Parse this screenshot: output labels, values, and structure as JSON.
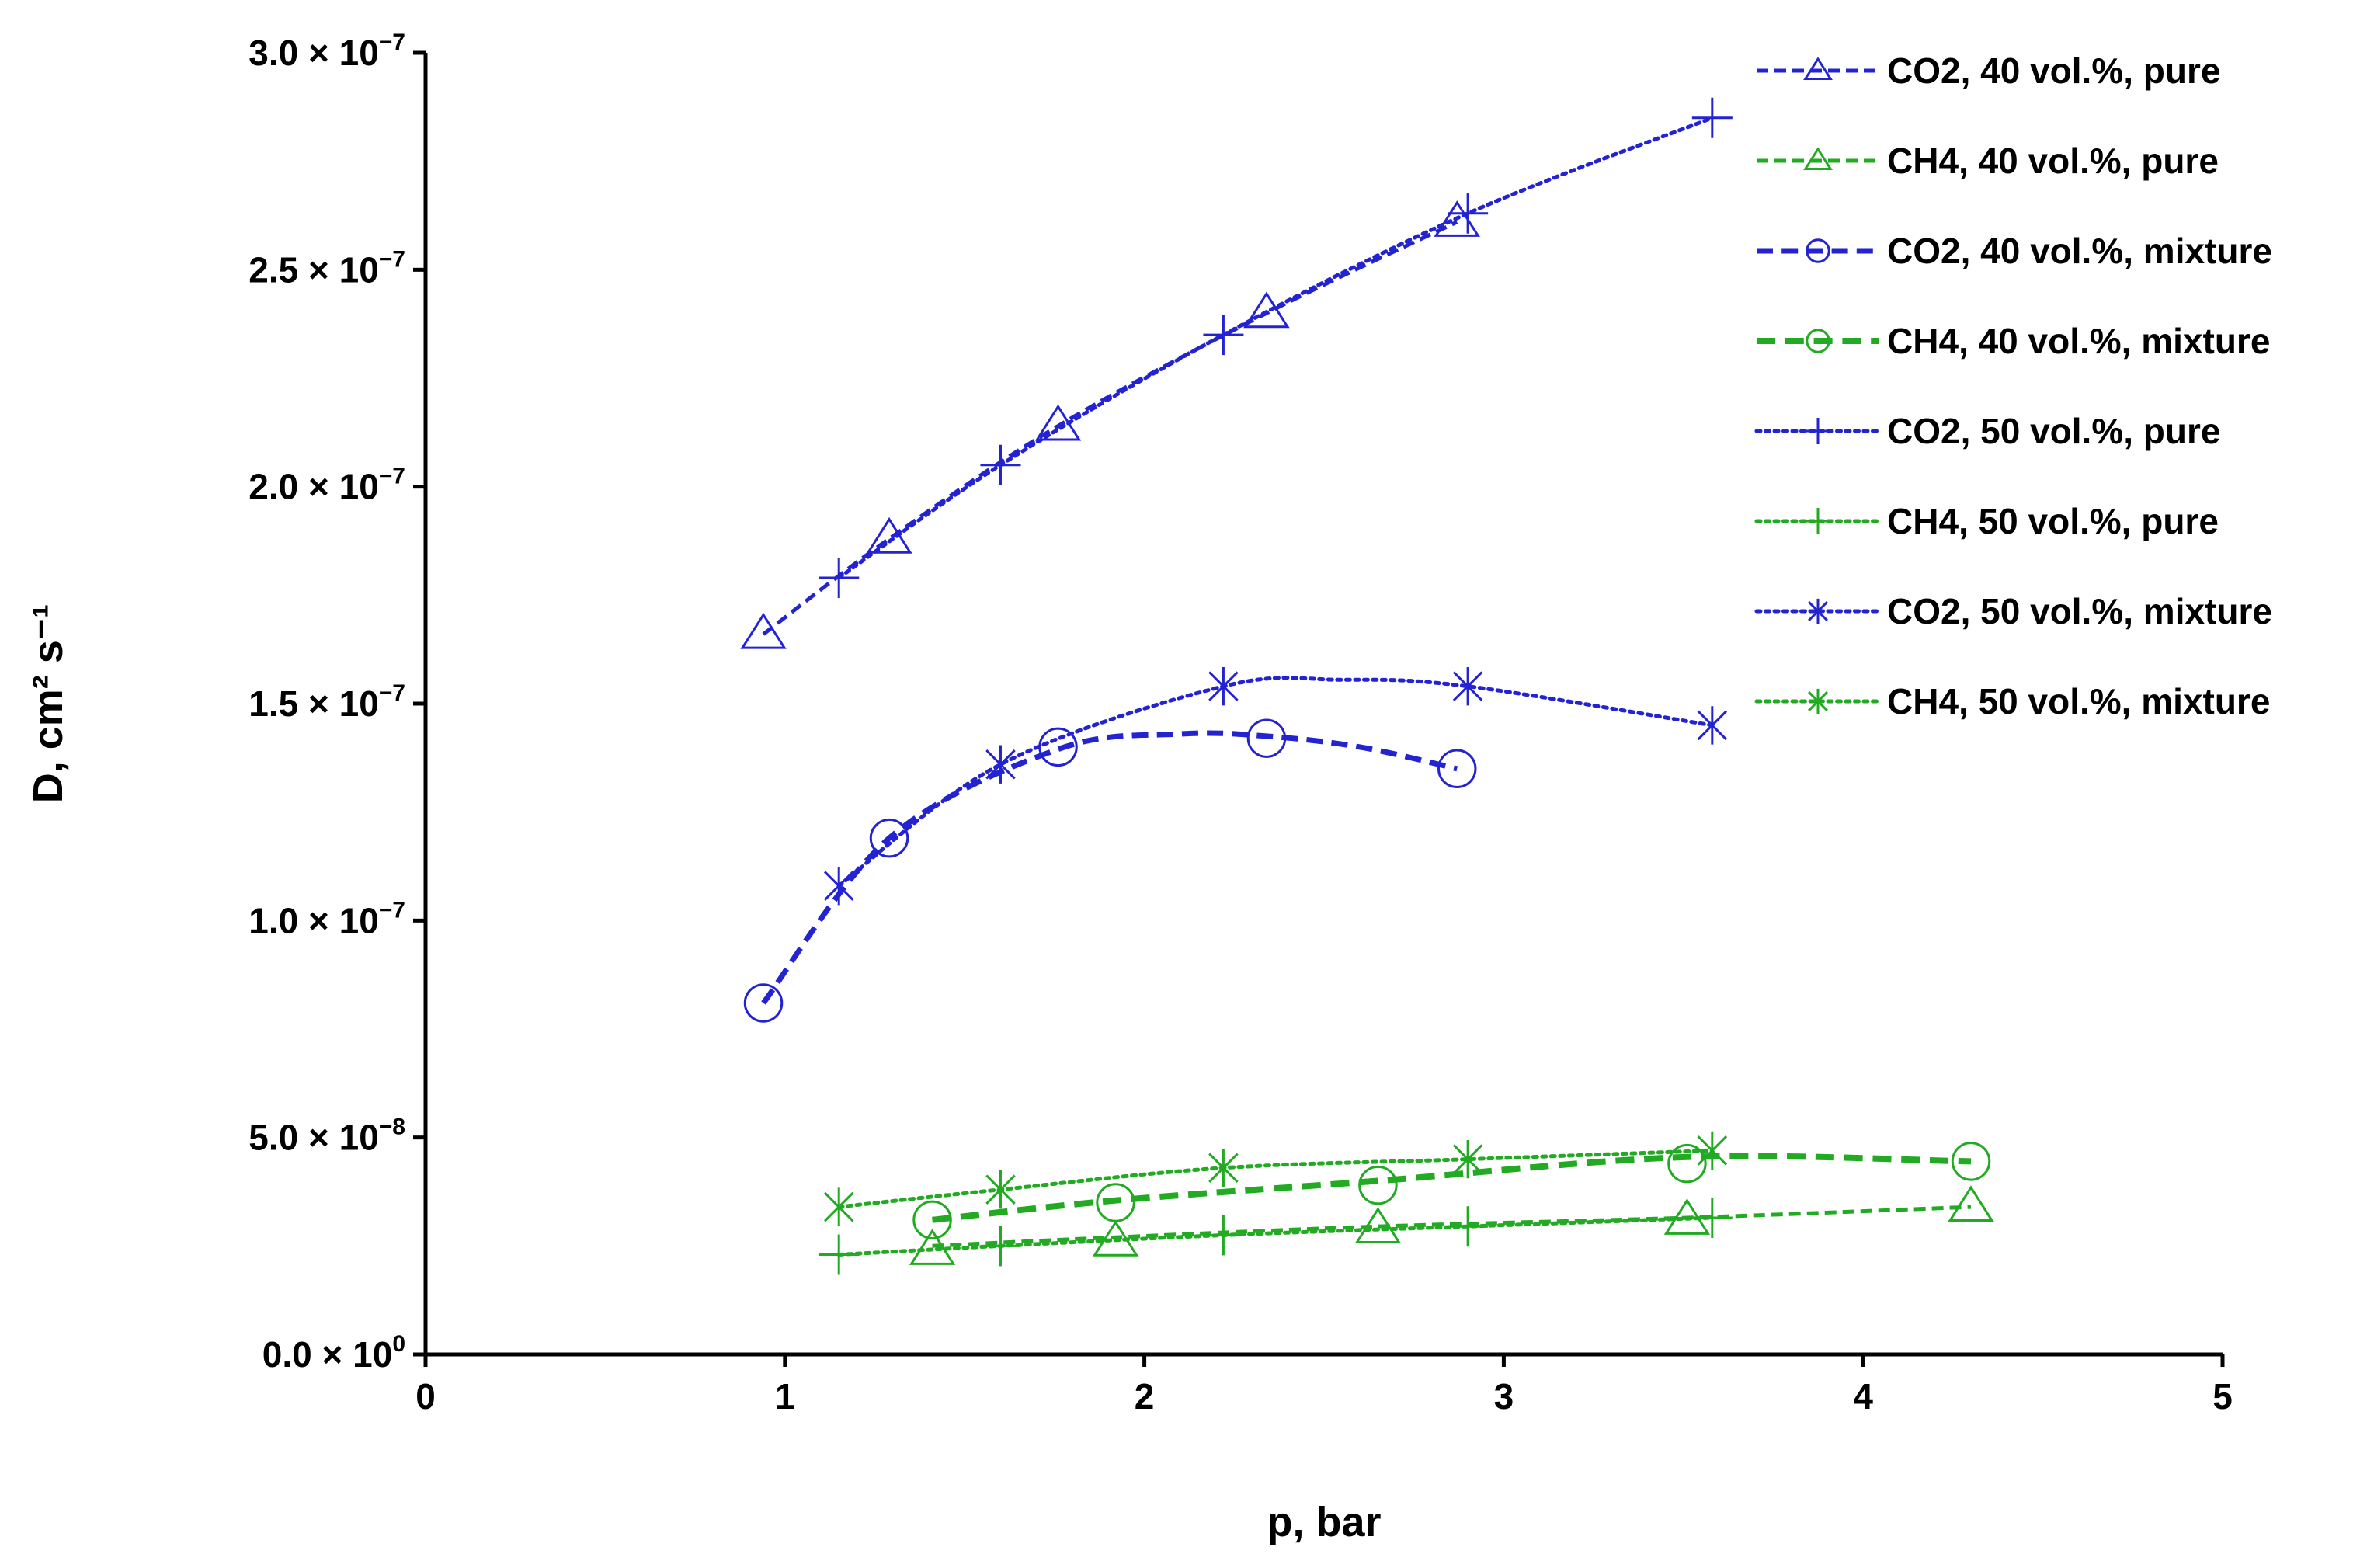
{
  "chart_data": {
    "type": "line",
    "title": "",
    "xlabel": "p, bar",
    "ylabel": "D, cm² s⁻¹",
    "xlim": [
      0,
      5
    ],
    "ylim": [
      0,
      3e-07
    ],
    "x_ticks": [
      0,
      1,
      2,
      3,
      4,
      5
    ],
    "x_tick_labels": [
      "0",
      "1",
      "2",
      "3",
      "4",
      "5"
    ],
    "y_ticks": [
      0,
      5e-08,
      1e-07,
      1.5e-07,
      2e-07,
      2.5e-07,
      3e-07
    ],
    "y_tick_labels": [
      {
        "mantissa": "0.0",
        "base": "× 10",
        "exp": "0"
      },
      {
        "mantissa": "5.0",
        "base": "× 10",
        "exp": "−8"
      },
      {
        "mantissa": "1.0",
        "base": "× 10",
        "exp": "−7"
      },
      {
        "mantissa": "1.5",
        "base": "× 10",
        "exp": "−7"
      },
      {
        "mantissa": "2.0",
        "base": "× 10",
        "exp": "−7"
      },
      {
        "mantissa": "2.5",
        "base": "× 10",
        "exp": "−7"
      },
      {
        "mantissa": "3.0",
        "base": "× 10",
        "exp": "−7"
      }
    ],
    "grid": false,
    "legend_position": "top-right",
    "series": [
      {
        "name": "CO2, 40 vol.%, pure",
        "color": "#2323D2",
        "line": "dashed",
        "marker": "triangle",
        "lw": 5,
        "points": [
          [
            0.94,
            1.66e-07
          ],
          [
            1.29,
            1.88e-07
          ],
          [
            1.76,
            2.14e-07
          ],
          [
            2.34,
            2.4e-07
          ],
          [
            2.87,
            2.61e-07
          ]
        ],
        "curve": [
          [
            0.94,
            1.66e-07
          ],
          [
            1.29,
            1.88e-07
          ],
          [
            1.76,
            2.14e-07
          ],
          [
            2.34,
            2.4e-07
          ],
          [
            2.87,
            2.61e-07
          ]
        ]
      },
      {
        "name": "CH4, 40 vol.%, pure",
        "color": "#22AA22",
        "line": "dashed",
        "marker": "triangle",
        "lw": 5,
        "points": [
          [
            1.41,
            2.4e-08
          ],
          [
            1.92,
            2.6e-08
          ],
          [
            2.65,
            2.9e-08
          ],
          [
            3.51,
            3.1e-08
          ],
          [
            4.3,
            3.4e-08
          ]
        ],
        "curve": [
          [
            1.41,
            2.5e-08
          ],
          [
            1.92,
            2.7e-08
          ],
          [
            2.65,
            2.95e-08
          ],
          [
            3.51,
            3.15e-08
          ],
          [
            4.3,
            3.4e-08
          ]
        ]
      },
      {
        "name": "CO2, 40 vol.%, mixture",
        "color": "#2323D2",
        "line": "dashed",
        "marker": "circle",
        "lw": 7,
        "points": [
          [
            0.94,
            8.1e-08
          ],
          [
            1.29,
            1.19e-07
          ],
          [
            1.76,
            1.4e-07
          ],
          [
            2.34,
            1.42e-07
          ],
          [
            2.87,
            1.35e-07
          ]
        ],
        "curve": [
          [
            0.94,
            8.1e-08
          ],
          [
            1.29,
            1.19e-07
          ],
          [
            1.76,
            1.395e-07
          ],
          [
            2.1,
            1.43e-07
          ],
          [
            2.34,
            1.425e-07
          ],
          [
            2.6,
            1.4e-07
          ],
          [
            2.87,
            1.35e-07
          ]
        ]
      },
      {
        "name": "CH4, 40 vol.%, mixture",
        "color": "#22AA22",
        "line": "dashed",
        "marker": "circle",
        "lw": 8,
        "points": [
          [
            1.41,
            3.1e-08
          ],
          [
            1.92,
            3.5e-08
          ],
          [
            2.65,
            3.9e-08
          ],
          [
            3.51,
            4.4e-08
          ],
          [
            4.3,
            4.45e-08
          ]
        ],
        "curve": [
          [
            1.41,
            3.1e-08
          ],
          [
            1.92,
            3.55e-08
          ],
          [
            2.65,
            4e-08
          ],
          [
            3.51,
            4.55e-08
          ],
          [
            4.3,
            4.45e-08
          ]
        ]
      },
      {
        "name": "CO2, 50 vol.%, pure",
        "color": "#2323D2",
        "line": "dotted",
        "marker": "plus",
        "lw": 5,
        "points": [
          [
            1.15,
            1.79e-07
          ],
          [
            1.6,
            2.05e-07
          ],
          [
            2.22,
            2.35e-07
          ],
          [
            2.9,
            2.63e-07
          ],
          [
            3.58,
            2.85e-07
          ]
        ],
        "curve": [
          [
            1.15,
            1.79e-07
          ],
          [
            1.6,
            2.05e-07
          ],
          [
            2.22,
            2.35e-07
          ],
          [
            2.9,
            2.63e-07
          ],
          [
            3.58,
            2.85e-07
          ]
        ]
      },
      {
        "name": "CH4, 50 vol.%, pure",
        "color": "#22AA22",
        "line": "dotted",
        "marker": "plus",
        "lw": 5,
        "points": [
          [
            1.15,
            2.3e-08
          ],
          [
            1.6,
            2.5e-08
          ],
          [
            2.22,
            2.75e-08
          ],
          [
            2.9,
            2.95e-08
          ],
          [
            3.58,
            3.15e-08
          ]
        ],
        "curve": [
          [
            1.15,
            2.3e-08
          ],
          [
            1.6,
            2.5e-08
          ],
          [
            2.22,
            2.75e-08
          ],
          [
            2.9,
            2.95e-08
          ],
          [
            3.58,
            3.15e-08
          ]
        ]
      },
      {
        "name": "CO2, 50 vol.%, mixture",
        "color": "#2323D2",
        "line": "dotted",
        "marker": "star",
        "lw": 5,
        "points": [
          [
            1.15,
            1.08e-07
          ],
          [
            1.6,
            1.36e-07
          ],
          [
            2.22,
            1.54e-07
          ],
          [
            2.9,
            1.54e-07
          ],
          [
            3.58,
            1.45e-07
          ]
        ],
        "curve": [
          [
            1.15,
            1.08e-07
          ],
          [
            1.6,
            1.36e-07
          ],
          [
            2.22,
            1.54e-07
          ],
          [
            2.55,
            1.555e-07
          ],
          [
            2.9,
            1.54e-07
          ],
          [
            3.58,
            1.45e-07
          ]
        ]
      },
      {
        "name": "CH4, 50 vol.%, mixture",
        "color": "#22AA22",
        "line": "dotted",
        "marker": "star",
        "lw": 5,
        "points": [
          [
            1.15,
            3.4e-08
          ],
          [
            1.6,
            3.8e-08
          ],
          [
            2.22,
            4.3e-08
          ],
          [
            2.9,
            4.5e-08
          ],
          [
            3.58,
            4.7e-08
          ]
        ],
        "curve": [
          [
            1.15,
            3.4e-08
          ],
          [
            1.6,
            3.8e-08
          ],
          [
            2.22,
            4.3e-08
          ],
          [
            2.9,
            4.5e-08
          ],
          [
            3.58,
            4.7e-08
          ]
        ]
      }
    ]
  }
}
